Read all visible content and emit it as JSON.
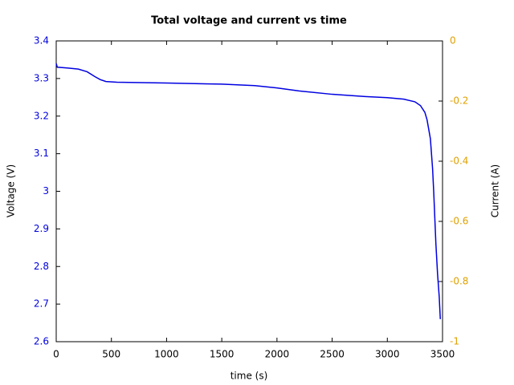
{
  "chart_data": {
    "type": "line",
    "title": "Total voltage and current vs time",
    "x_label": "time (s)",
    "y_label": "Voltage (V)",
    "y2_label": "Current (A)",
    "x": [
      0,
      10,
      100,
      200,
      280,
      350,
      400,
      450,
      550,
      1000,
      1500,
      1800,
      2000,
      2200,
      2500,
      2800,
      3000,
      3150,
      3250,
      3300,
      3340,
      3360,
      3390,
      3410,
      3420,
      3440,
      3455,
      3470,
      3480
    ],
    "series": [
      {
        "name": "Voltage",
        "color": "#0000e0",
        "values": [
          3.34,
          3.33,
          3.328,
          3.325,
          3.318,
          3.305,
          3.297,
          3.292,
          3.29,
          3.288,
          3.285,
          3.281,
          3.275,
          3.267,
          3.258,
          3.252,
          3.249,
          3.245,
          3.238,
          3.228,
          3.21,
          3.19,
          3.14,
          3.06,
          3.0,
          2.86,
          2.78,
          2.72,
          2.66
        ]
      }
    ],
    "xlim": [
      0,
      3500
    ],
    "xticks": [
      0,
      500,
      1000,
      1500,
      2000,
      2500,
      3000,
      3500
    ],
    "ylim": [
      2.6,
      3.4
    ],
    "yticks": [
      2.6,
      2.7,
      2.8,
      2.9,
      3,
      3.1,
      3.2,
      3.3,
      3.4
    ],
    "y2lim": [
      -1,
      0
    ],
    "y2ticks": [
      -1,
      -0.8,
      -0.6,
      -0.4,
      -0.2,
      0
    ],
    "grid": false
  }
}
